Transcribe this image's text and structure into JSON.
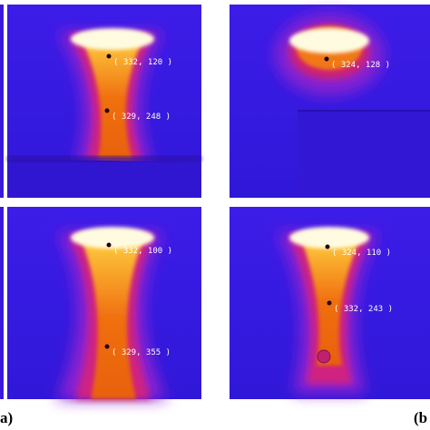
{
  "panels": [
    {
      "points": [
        "( 332, 120 )",
        "( 329, 248 )"
      ]
    },
    {
      "points": [
        "( 324, 128 )"
      ]
    },
    {
      "points": [
        "( 332, 100 )",
        "( 329, 355 )"
      ]
    },
    {
      "points": [
        "( 324, 110 )",
        "( 332, 243 )"
      ]
    }
  ],
  "captions": [
    "a)",
    "(b"
  ]
}
